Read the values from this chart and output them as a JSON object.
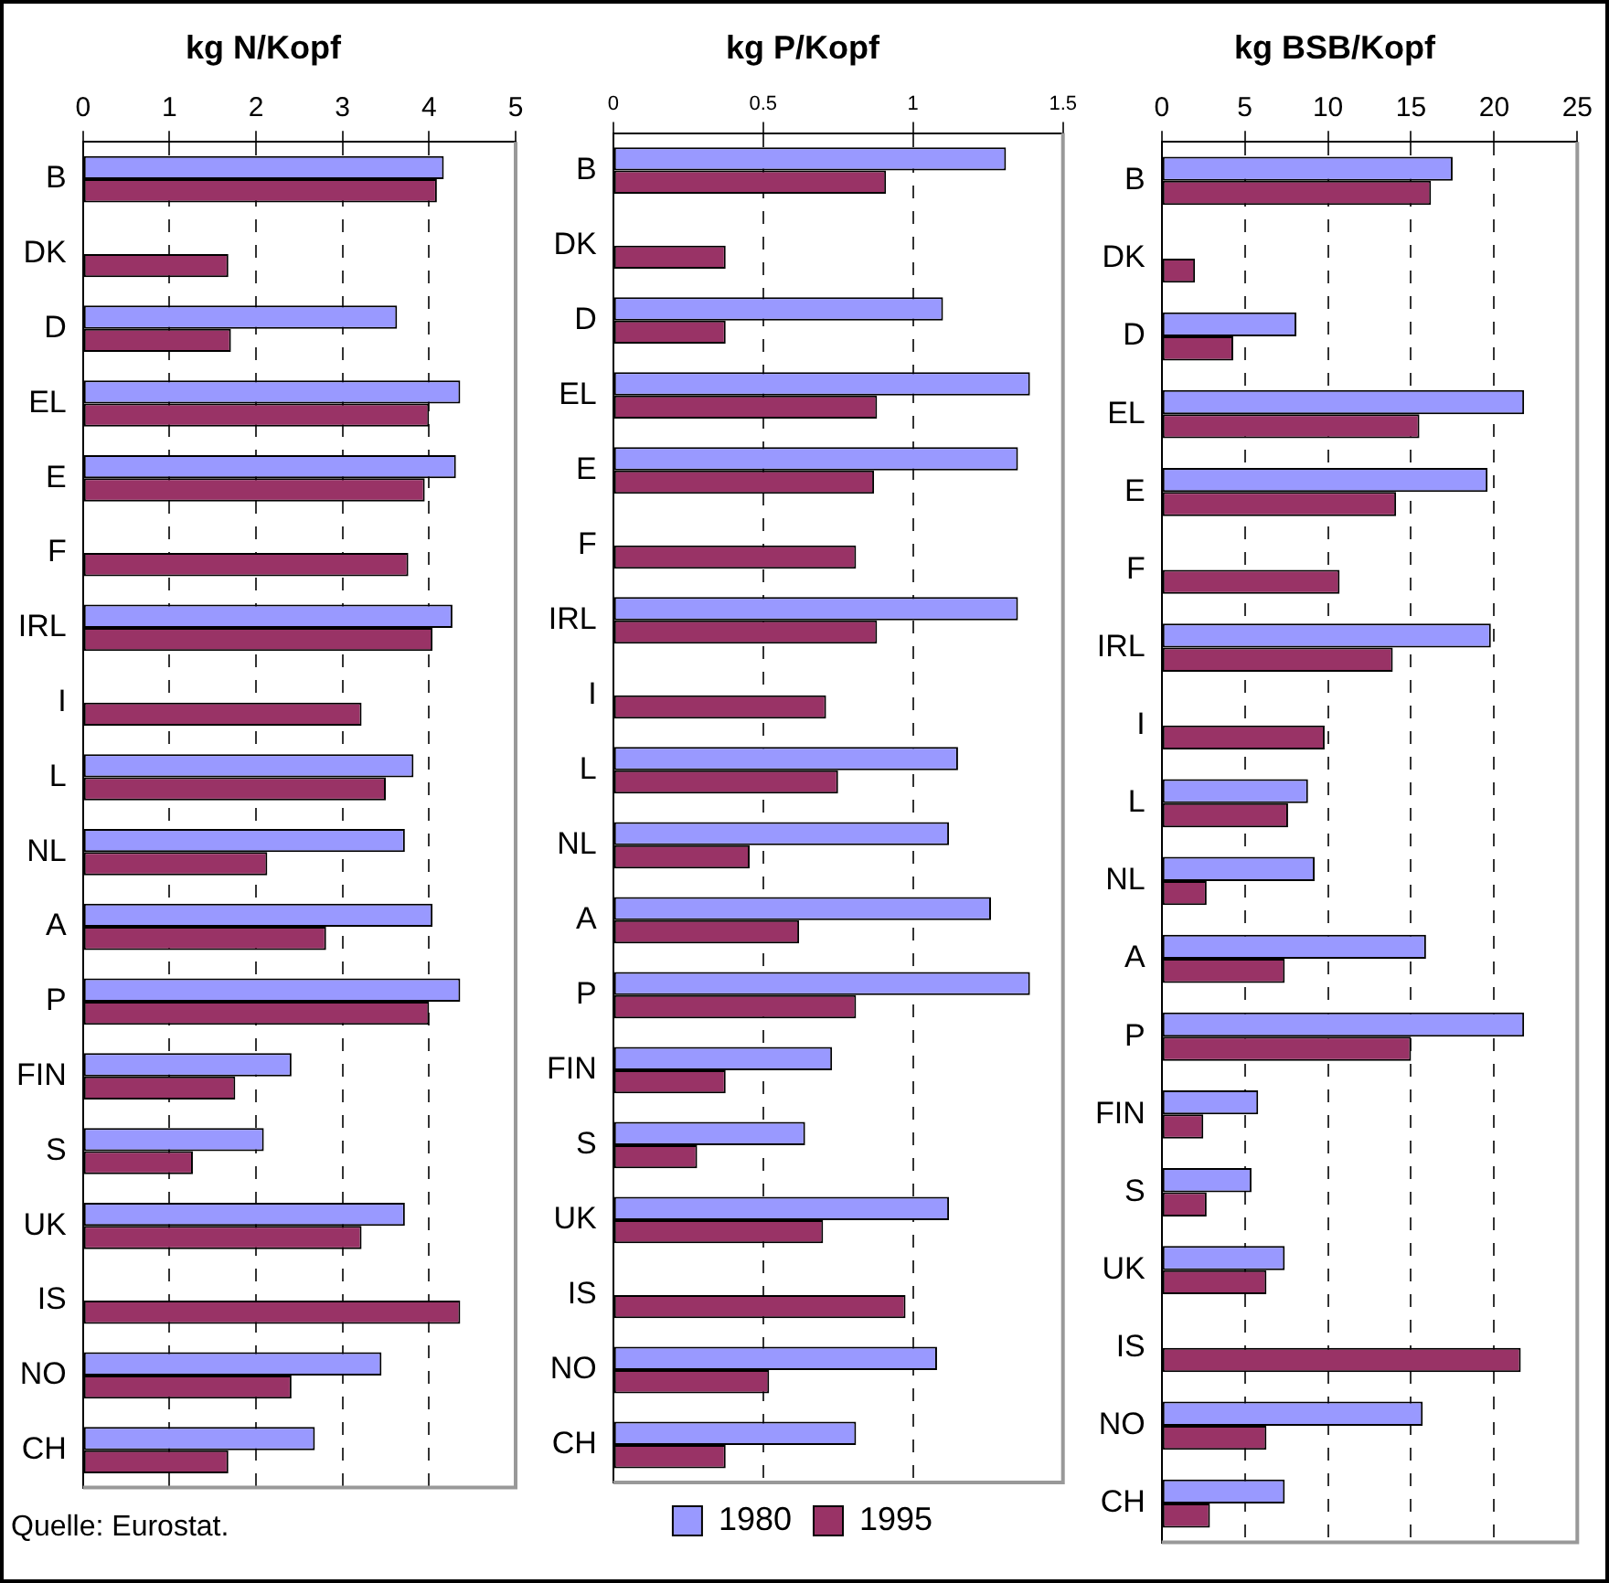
{
  "chart_data": [
    {
      "type": "bar",
      "orientation": "horizontal",
      "title": "kg N/Kopf",
      "categories": [
        "B",
        "DK",
        "D",
        "EL",
        "E",
        "F",
        "IRL",
        "I",
        "L",
        "NL",
        "A",
        "P",
        "FIN",
        "S",
        "UK",
        "IS",
        "NO",
        "CH"
      ],
      "series": [
        {
          "color": "#9999ff",
          "values": [
            4.17,
            null,
            3.63,
            4.36,
            4.31,
            null,
            4.27,
            null,
            3.82,
            3.72,
            4.04,
            4.36,
            2.41,
            2.09,
            3.72,
            null,
            3.45,
            2.68
          ]
        },
        {
          "color": "#993366",
          "values": [
            4.09,
            1.68,
            1.71,
            4.0,
            3.95,
            3.76,
            4.04,
            3.22,
            3.5,
            2.13,
            2.81,
            4.0,
            1.76,
            1.27,
            3.22,
            4.36,
            2.41,
            1.68
          ]
        }
      ],
      "xlim": [
        0,
        5
      ],
      "xticks": [
        0,
        1,
        2,
        3,
        4,
        5
      ],
      "grid": "x",
      "legend": false,
      "annotations": [
        "Quelle: Eurostat."
      ]
    },
    {
      "type": "bar",
      "orientation": "horizontal",
      "title": "kg P/Kopf",
      "categories": [
        "B",
        "DK",
        "D",
        "EL",
        "E",
        "F",
        "IRL",
        "I",
        "L",
        "NL",
        "A",
        "P",
        "FIN",
        "S",
        "UK",
        "IS",
        "NO",
        "CH"
      ],
      "series": [
        {
          "name": "1980",
          "color": "#9999ff",
          "values": [
            1.31,
            null,
            1.1,
            1.39,
            1.35,
            null,
            1.35,
            null,
            1.15,
            1.12,
            1.26,
            1.39,
            0.73,
            0.64,
            1.12,
            null,
            1.08,
            0.81
          ]
        },
        {
          "name": "1995",
          "color": "#993366",
          "values": [
            0.91,
            0.375,
            0.375,
            0.88,
            0.87,
            0.81,
            0.88,
            0.71,
            0.75,
            0.455,
            0.62,
            0.81,
            0.375,
            0.28,
            0.7,
            0.975,
            0.52,
            0.375
          ]
        }
      ],
      "xlim": [
        0,
        1.5
      ],
      "xticks": [
        0,
        0.5,
        1,
        1.5
      ],
      "grid": "x",
      "legend": "bottom"
    },
    {
      "type": "bar",
      "orientation": "horizontal",
      "title": "kg BSB/Kopf",
      "categories": [
        "B",
        "DK",
        "D",
        "EL",
        "E",
        "F",
        "IRL",
        "I",
        "L",
        "NL",
        "A",
        "P",
        "FIN",
        "S",
        "UK",
        "IS",
        "NO",
        "CH"
      ],
      "series": [
        {
          "color": "#9999ff",
          "values": [
            17.5,
            null,
            8.1,
            21.8,
            19.6,
            null,
            19.8,
            null,
            8.8,
            9.2,
            15.9,
            21.8,
            5.8,
            5.4,
            7.4,
            null,
            15.7,
            7.4
          ]
        },
        {
          "color": "#993366",
          "values": [
            16.2,
            2.0,
            4.3,
            15.5,
            14.1,
            10.7,
            13.9,
            9.8,
            7.6,
            2.7,
            7.4,
            15.0,
            2.5,
            2.7,
            6.3,
            21.6,
            6.3,
            2.9
          ]
        }
      ],
      "xlim": [
        0,
        25
      ],
      "xticks": [
        0,
        5,
        10,
        15,
        20,
        25
      ],
      "grid": "x",
      "legend": false
    }
  ]
}
